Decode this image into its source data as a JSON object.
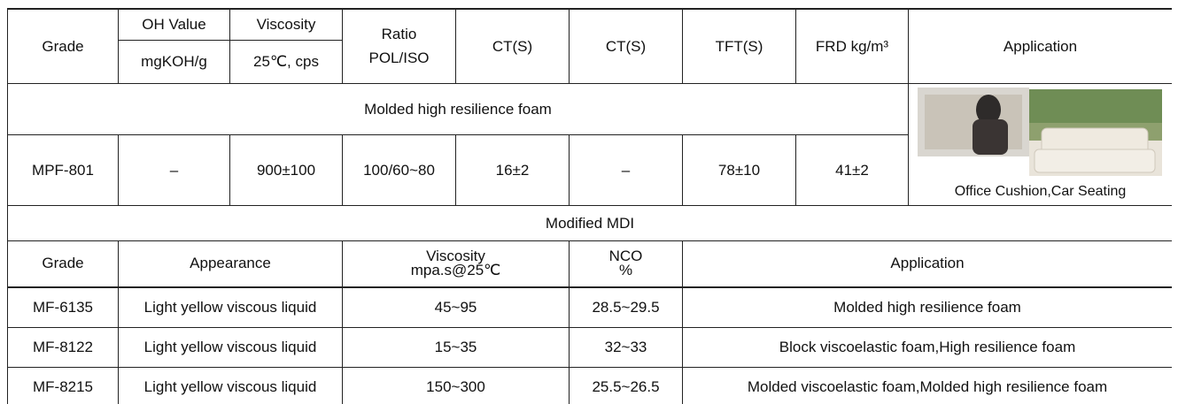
{
  "table1": {
    "header_top": [
      "Grade",
      "OH Value",
      "Viscosity",
      "Ratio",
      "CT(S)",
      "CT(S)",
      "TFT(S)",
      "FRD kg/m³",
      "Application"
    ],
    "header_sub": [
      "mgKOH/g",
      "25℃, cps",
      "POL/ISO"
    ],
    "section": "Molded high resilience foam",
    "rows": [
      [
        "MPF-801",
        "–",
        "900±100",
        "100/60~80",
        "16±2",
        "–",
        "78±10",
        "41±2"
      ]
    ],
    "image_caption": "Office Cushion,Car Seating"
  },
  "table2": {
    "title": "Modified MDI",
    "header": [
      [
        "Grade"
      ],
      [
        "Appearance"
      ],
      [
        "Viscosity",
        "mpa.s@25℃"
      ],
      [
        "NCO",
        "%"
      ],
      [
        "Application"
      ]
    ],
    "rows": [
      [
        "MF-6135",
        "Light yellow viscous liquid",
        "45~95",
        "28.5~29.5",
        "Molded high resilience foam"
      ],
      [
        "MF-8122",
        "Light yellow viscous liquid",
        "15~35",
        "32~33",
        "Block viscoelastic foam,High resilience foam"
      ],
      [
        "MF-8215",
        "Light yellow viscous liquid",
        "150~300",
        "25.5~26.5",
        "Molded viscoelastic foam,Molded high resilience foam"
      ]
    ]
  }
}
